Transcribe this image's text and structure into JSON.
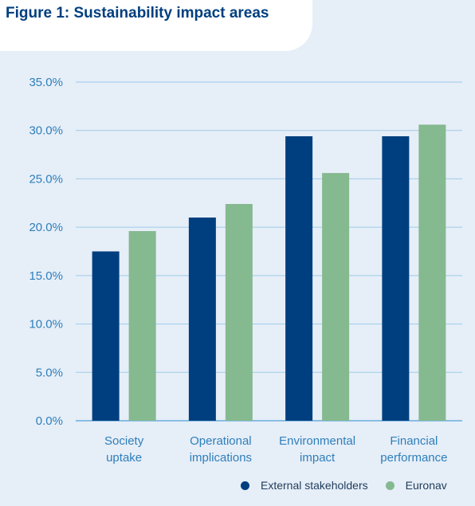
{
  "title": "Figure 1: Sustainability impact areas",
  "colors": {
    "external": "#003f7f",
    "euronav": "#85b98f",
    "axis_text": "#2e7fba",
    "grid": "#9ecbe8"
  },
  "chart_data": {
    "type": "bar",
    "categories": [
      [
        "Society",
        "uptake"
      ],
      [
        "Operational",
        "implications"
      ],
      [
        "Environmental",
        "impact"
      ],
      [
        "Financial",
        "performance"
      ]
    ],
    "series": [
      {
        "name": "External stakeholders",
        "values": [
          17.5,
          21.0,
          29.4,
          29.4
        ]
      },
      {
        "name": "Euronav",
        "values": [
          19.6,
          22.4,
          25.6,
          30.6
        ]
      }
    ],
    "yticks": [
      "0.0%",
      "5.0%",
      "10.0%",
      "15.0%",
      "20.0%",
      "25.0%",
      "30.0%",
      "35.0%"
    ],
    "ylim": [
      0,
      35
    ],
    "grid": true,
    "legend_position": "bottom-right"
  },
  "legend": [
    {
      "label": "External stakeholders",
      "color": "#003f7f"
    },
    {
      "label": "Euronav",
      "color": "#85b98f"
    }
  ]
}
